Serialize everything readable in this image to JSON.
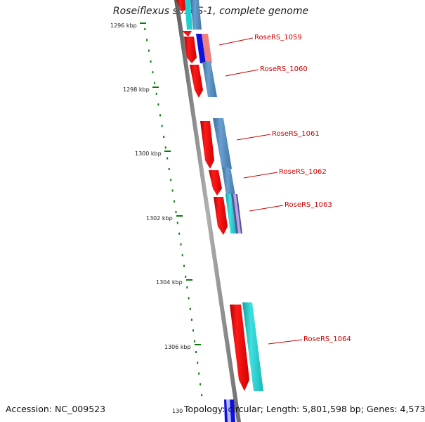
{
  "title": "Roseiflexus sp. RS-1, complete genome",
  "accession": "Accession: NC_009523",
  "topology": "Topology: circular; Length: 5,801,598 bp; Genes: 4,573",
  "ticks": [
    "1296 kbp",
    "1298 kbp",
    "1300 kbp",
    "1302 kbp",
    "1304 kbp",
    "1306 kbp",
    "130"
  ],
  "genes": [
    {
      "label": "RoseRS_1059"
    },
    {
      "label": "RoseRS_1060"
    },
    {
      "label": "RoseRS_1061"
    },
    {
      "label": "RoseRS_1062"
    },
    {
      "label": "RoseRS_1063"
    },
    {
      "label": "RoseRS_1064"
    }
  ],
  "colors": {
    "backbone": "#808080",
    "forward_gene": "#ee0000",
    "annotation": "#cc0000",
    "feature_blue": "#4682b4",
    "feature_cyan": "#20c8c8",
    "feature_pink": "#f08080",
    "tick": "#0a7a0a"
  }
}
